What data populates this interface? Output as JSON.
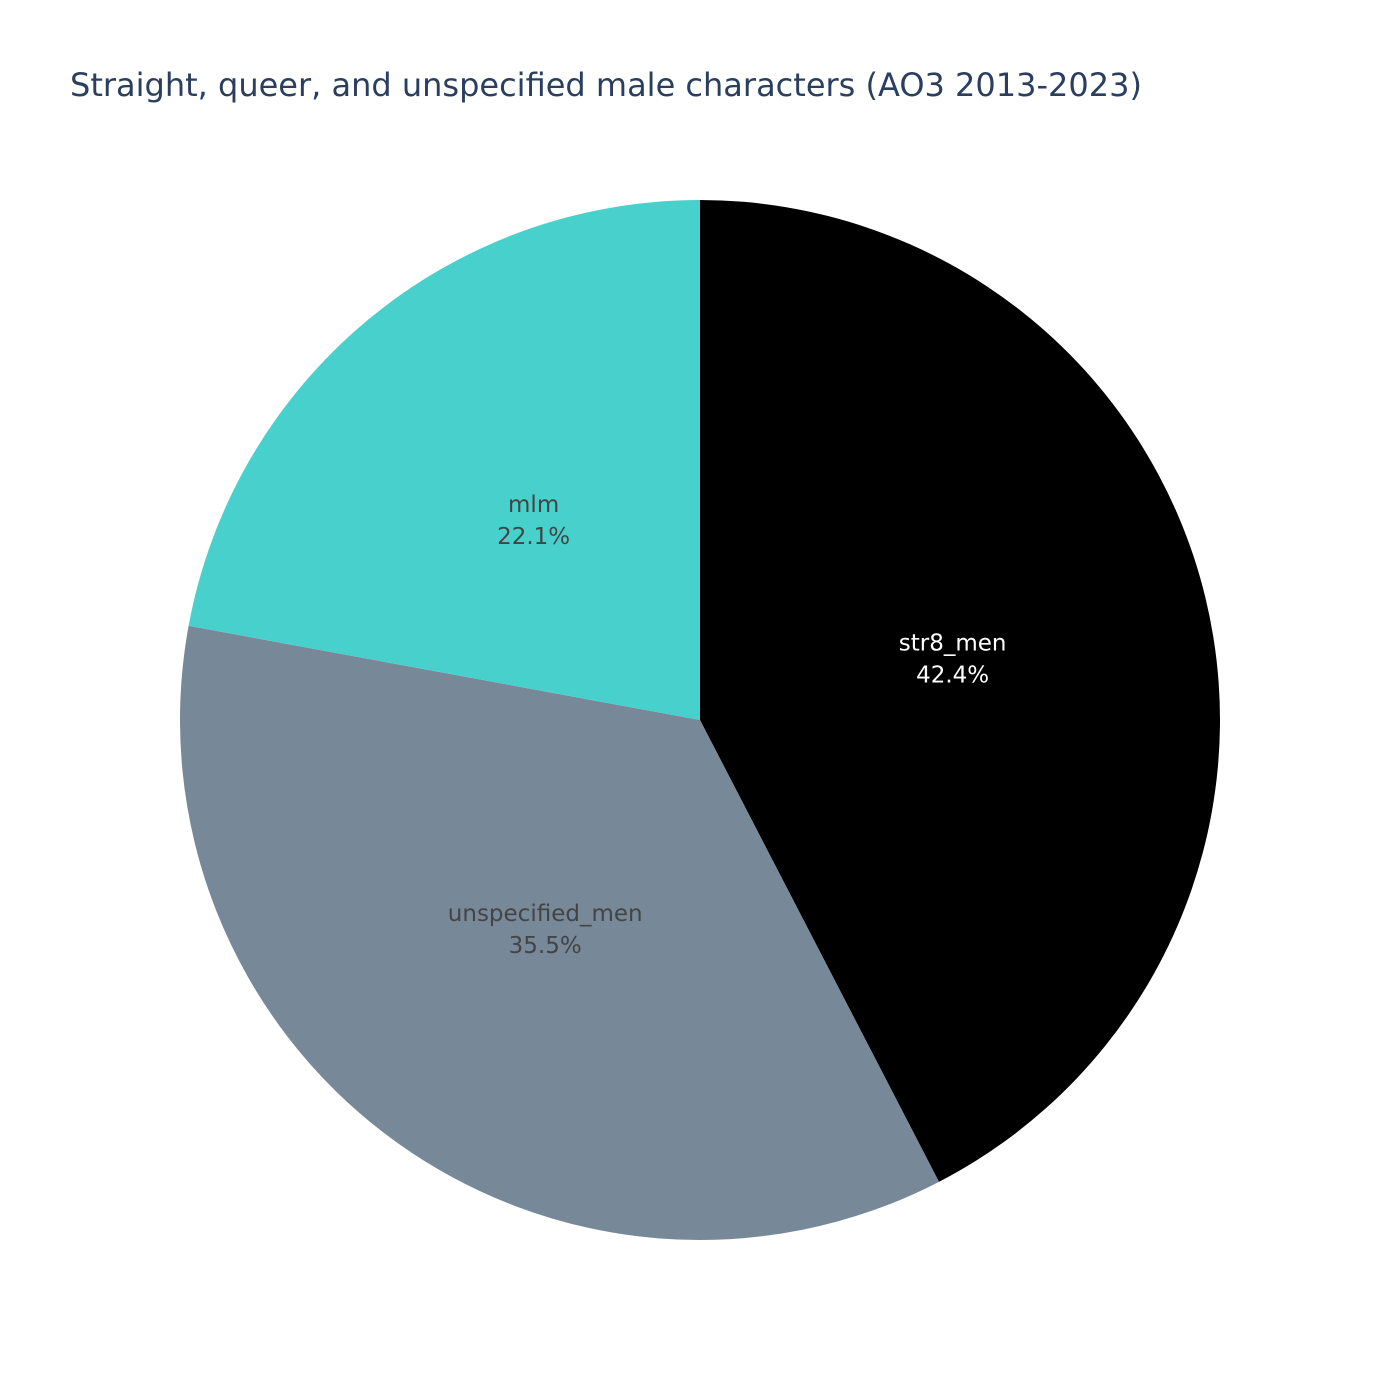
{
  "chart_data": {
    "type": "pie",
    "title": "Straight, queer, and unspecified male characters (AO3 2013-2023)",
    "slices": [
      {
        "label": "str8_men",
        "percent_text": "42.4%",
        "value": 42.4,
        "color": "#000000",
        "text_color": "#ffffff"
      },
      {
        "label": "unspecified_men",
        "percent_text": "35.5%",
        "value": 35.5,
        "color": "#778899",
        "text_color": "#444444"
      },
      {
        "label": "mlm",
        "percent_text": "22.1%",
        "value": 22.1,
        "color": "#48d1cc",
        "text_color": "#444444"
      }
    ],
    "direction": "clockwise",
    "start": "top"
  }
}
